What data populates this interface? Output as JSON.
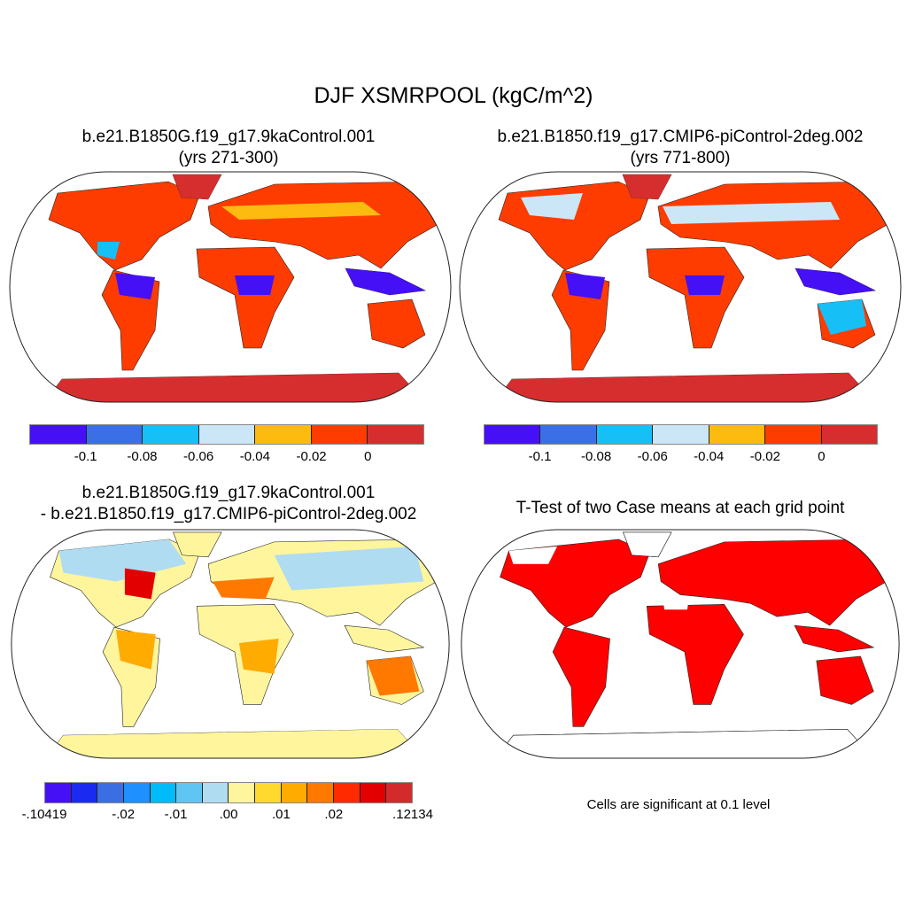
{
  "figure": {
    "title": "DJF XSMRPOOL (kgC/m^2)"
  },
  "panels": [
    {
      "title_line1": "b.e21.B1850G.f19_g17.9kaControl.001",
      "title_line2": "(yrs 271-300)"
    },
    {
      "title_line1": "b.e21.B1850.f19_g17.CMIP6-piControl-2deg.002",
      "title_line2": "(yrs 771-800)"
    },
    {
      "title_line1": "b.e21.B1850G.f19_g17.9kaControl.001",
      "title_line2": "- b.e21.B1850.f19_g17.CMIP6-piControl-2deg.002"
    },
    {
      "title_line1": "T-Test of two Case means at each grid point",
      "note": "Cells are significant at 0.1 level"
    }
  ],
  "colorbar_top": {
    "colors": [
      "#4510f5",
      "#3a6fe6",
      "#17bff7",
      "#cbe7f7",
      "#fdbb10",
      "#ff3c00",
      "#d62e2e"
    ],
    "labels": [
      "-0.1",
      "-0.08",
      "-0.06",
      "-0.04",
      "-0.02",
      "0"
    ]
  },
  "colorbar_diff": {
    "colors": [
      "#4510f5",
      "#1a2af0",
      "#3c6ee3",
      "#1e90ff",
      "#00bbf9",
      "#5fc5f2",
      "#b0dcf2",
      "#fff59d",
      "#ffd92e",
      "#ffab00",
      "#ff7800",
      "#ff2a00",
      "#e20000",
      "#d32b2b"
    ],
    "labels": [
      "-.10419",
      "-.02",
      "-.01",
      ".00",
      ".01",
      ".02",
      ".12134"
    ]
  }
}
